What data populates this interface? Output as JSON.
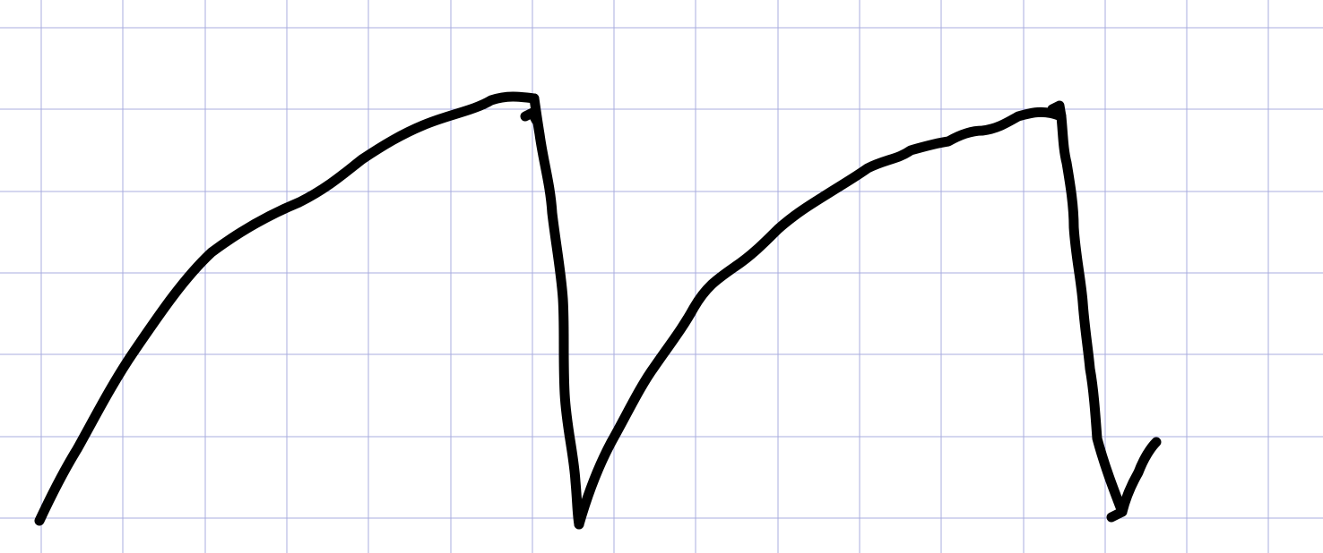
{
  "canvas": {
    "background_color": "#ffffff",
    "grid_color": "#a9acdf",
    "ink_color": "#000000",
    "paper": "square-grid"
  },
  "sketch": {
    "description_type": "hand-drawn-waveform",
    "shape": "sawtooth-like curve",
    "rises": 2,
    "drops": 2,
    "text_labels": []
  }
}
